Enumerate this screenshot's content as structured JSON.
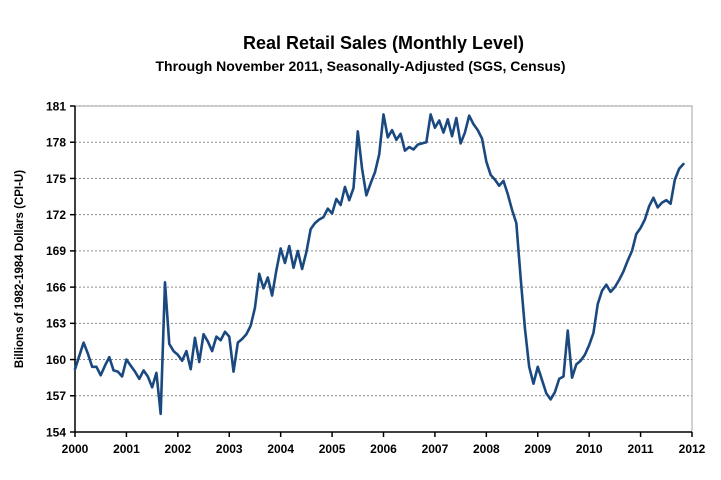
{
  "chart_data": {
    "type": "line",
    "title": "Real Retail Sales (Monthly Level)",
    "subtitle": "Through November 2011, Seasonally-Adjusted (SGS, Census)",
    "ylabel": "Billions of 1982-1984 Dollars (CPI-U)",
    "ylim": [
      154,
      181
    ],
    "y_ticks": [
      154,
      157,
      160,
      163,
      166,
      169,
      172,
      175,
      178,
      181
    ],
    "x_tick_labels": [
      "2000",
      "2001",
      "2002",
      "2003",
      "2004",
      "2005",
      "2006",
      "2007",
      "2008",
      "2009",
      "2010",
      "2011",
      "2012"
    ],
    "x_range_months": 144,
    "grid": "horizontal dotted gray",
    "legend": "none",
    "colors": {
      "line": "#1A4980",
      "axis": "#000000",
      "grid": "#8C8C8C",
      "frame": "#A6A6A6",
      "background": "#FFFFFF"
    },
    "series": [
      {
        "label": "Real retail sales, monthly, seasonally adjusted",
        "start": "2000-01",
        "end": "2011-11",
        "color": "#1A4980",
        "values": [
          159.2,
          160.3,
          161.4,
          160.5,
          159.4,
          159.4,
          158.7,
          159.5,
          160.2,
          159.1,
          159.0,
          158.6,
          160.0,
          159.5,
          159.0,
          158.4,
          159.1,
          158.6,
          157.7,
          158.9,
          155.5,
          166.4,
          161.3,
          160.7,
          160.4,
          159.9,
          160.7,
          159.2,
          161.8,
          159.8,
          162.1,
          161.5,
          160.7,
          161.9,
          161.6,
          162.3,
          161.9,
          159.0,
          161.4,
          161.7,
          162.1,
          162.8,
          164.3,
          167.1,
          165.9,
          166.8,
          165.3,
          167.4,
          169.2,
          168.0,
          169.4,
          167.6,
          169.0,
          167.5,
          168.9,
          170.8,
          171.3,
          171.6,
          171.8,
          172.5,
          172.1,
          173.3,
          172.8,
          174.3,
          173.2,
          174.2,
          178.9,
          175.8,
          173.6,
          174.6,
          175.5,
          177.0,
          180.3,
          178.4,
          179.0,
          178.2,
          178.7,
          177.3,
          177.6,
          177.4,
          177.8,
          177.9,
          178.0,
          180.3,
          179.2,
          179.8,
          178.8,
          179.9,
          178.5,
          180.0,
          177.9,
          178.8,
          180.2,
          179.5,
          179.0,
          178.3,
          176.4,
          175.3,
          174.9,
          174.4,
          174.8,
          173.7,
          172.4,
          171.3,
          166.8,
          162.6,
          159.4,
          158.0,
          159.4,
          158.3,
          157.2,
          156.7,
          157.3,
          158.4,
          158.6,
          162.4,
          158.5,
          159.6,
          159.9,
          160.4,
          161.2,
          162.2,
          164.6,
          165.7,
          166.2,
          165.6,
          166.0,
          166.6,
          167.3,
          168.2,
          169.0,
          170.4,
          170.9,
          171.6,
          172.7,
          173.4,
          172.6,
          173.0,
          173.2,
          172.9,
          174.9,
          175.8,
          176.2
        ]
      }
    ]
  }
}
